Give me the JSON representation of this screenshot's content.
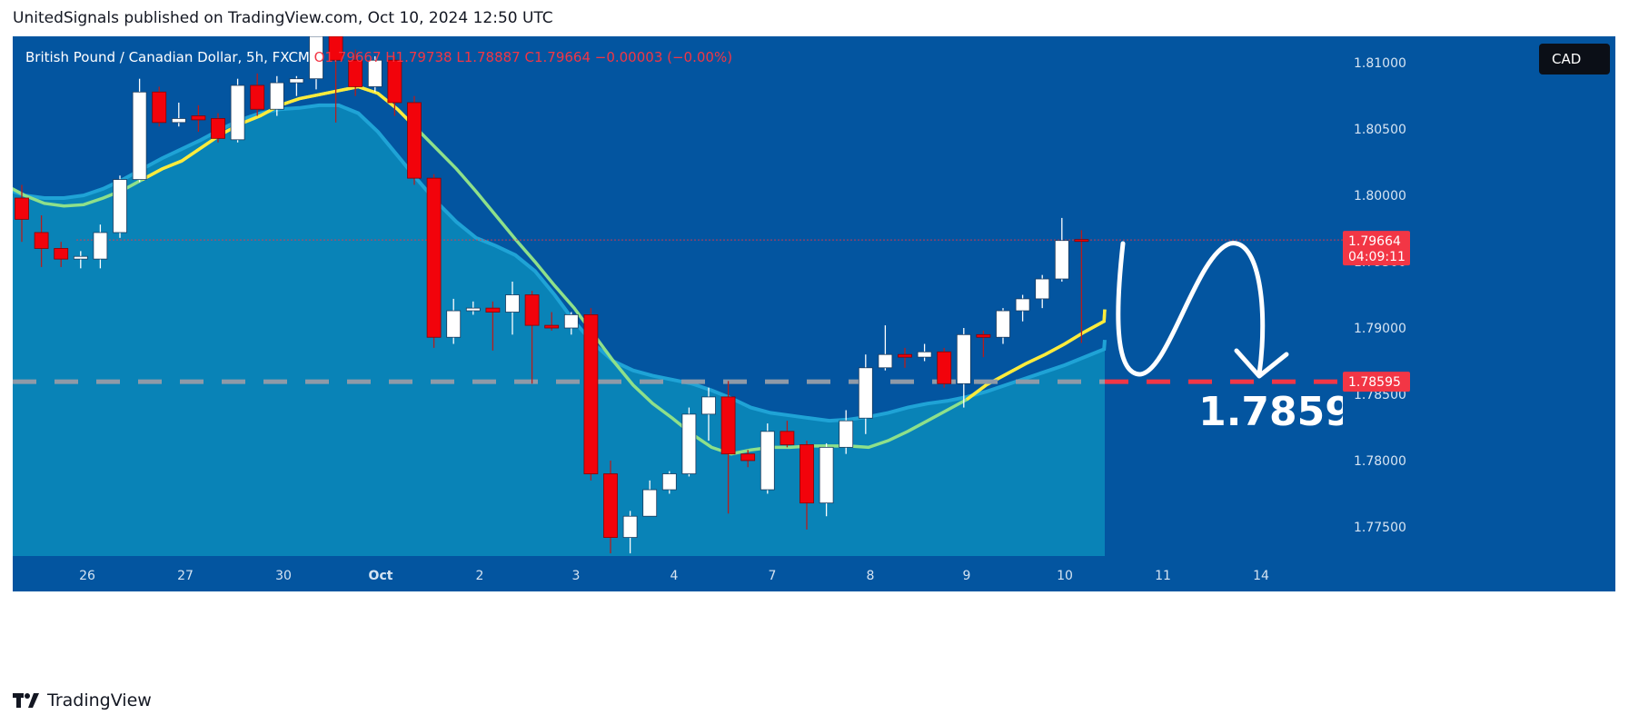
{
  "header": {
    "text": "UnitedSignals published on TradingView.com, Oct 10, 2024 12:50 UTC"
  },
  "legend": {
    "symbol": "British Pound / Canadian Dollar, 5h, FXCM",
    "ohlc": "O1.79667  H1.79738  L1.78887  C1.79664  −0.00003 (−0.00%)"
  },
  "currency_button": "CAD",
  "footer": {
    "brand": "TradingView"
  },
  "colors": {
    "background": "#0355a0",
    "band": "#0a86b8",
    "ema_fast": "#ffeb3b",
    "ema_slow": "#8ee08a",
    "bear": "#f2030b",
    "bull": "#ffffff",
    "label_red": "#f23645"
  },
  "chart_data": {
    "type": "candlestick",
    "y_ticks": [
      "1.81000",
      "1.80500",
      "1.80000",
      "1.79500",
      "1.79000",
      "1.78500",
      "1.78000",
      "1.77500"
    ],
    "y_tick_values": [
      1.81,
      1.805,
      1.8,
      1.795,
      1.79,
      1.785,
      1.78,
      1.775
    ],
    "ylim": [
      1.7728,
      1.812
    ],
    "x_labels": [
      "26",
      "27",
      "30",
      "Oct",
      "2",
      "3",
      "4",
      "7",
      "8",
      "9",
      "10",
      "11",
      "14"
    ],
    "candles": [
      {
        "o": 1.7998,
        "h": 1.8008,
        "l": 1.7965,
        "c": 1.7982
      },
      {
        "o": 1.7972,
        "h": 1.7985,
        "l": 1.7946,
        "c": 1.796
      },
      {
        "o": 1.796,
        "h": 1.7965,
        "l": 1.7946,
        "c": 1.7952
      },
      {
        "o": 1.7952,
        "h": 1.7958,
        "l": 1.7945,
        "c": 1.7954
      },
      {
        "o": 1.7952,
        "h": 1.7978,
        "l": 1.7945,
        "c": 1.7972
      },
      {
        "o": 1.7972,
        "h": 1.8015,
        "l": 1.7968,
        "c": 1.8012
      },
      {
        "o": 1.8012,
        "h": 1.8088,
        "l": 1.801,
        "c": 1.8078
      },
      {
        "o": 1.8078,
        "h": 1.8082,
        "l": 1.8052,
        "c": 1.8055
      },
      {
        "o": 1.8055,
        "h": 1.807,
        "l": 1.8052,
        "c": 1.8058
      },
      {
        "o": 1.806,
        "h": 1.8068,
        "l": 1.8048,
        "c": 1.8057
      },
      {
        "o": 1.8058,
        "h": 1.8062,
        "l": 1.804,
        "c": 1.8043
      },
      {
        "o": 1.8042,
        "h": 1.8088,
        "l": 1.804,
        "c": 1.8083
      },
      {
        "o": 1.8083,
        "h": 1.8092,
        "l": 1.806,
        "c": 1.8065
      },
      {
        "o": 1.8065,
        "h": 1.809,
        "l": 1.806,
        "c": 1.8085
      },
      {
        "o": 1.8085,
        "h": 1.809,
        "l": 1.8075,
        "c": 1.8088
      },
      {
        "o": 1.8088,
        "h": 1.8122,
        "l": 1.808,
        "c": 1.812
      },
      {
        "o": 1.812,
        "h": 1.813,
        "l": 1.8055,
        "c": 1.8102
      },
      {
        "o": 1.8102,
        "h": 1.811,
        "l": 1.8075,
        "c": 1.8082
      },
      {
        "o": 1.8082,
        "h": 1.8105,
        "l": 1.8078,
        "c": 1.8102
      },
      {
        "o": 1.8102,
        "h": 1.8105,
        "l": 1.806,
        "c": 1.807
      },
      {
        "o": 1.807,
        "h": 1.8075,
        "l": 1.8008,
        "c": 1.8013
      },
      {
        "o": 1.8013,
        "h": 1.8016,
        "l": 1.7885,
        "c": 1.7893
      },
      {
        "o": 1.7893,
        "h": 1.7922,
        "l": 1.7888,
        "c": 1.7913
      },
      {
        "o": 1.7913,
        "h": 1.792,
        "l": 1.791,
        "c": 1.7915
      },
      {
        "o": 1.7915,
        "h": 1.792,
        "l": 1.7883,
        "c": 1.7912
      },
      {
        "o": 1.7912,
        "h": 1.7935,
        "l": 1.7895,
        "c": 1.7925
      },
      {
        "o": 1.7925,
        "h": 1.7928,
        "l": 1.7858,
        "c": 1.7902
      },
      {
        "o": 1.7902,
        "h": 1.7912,
        "l": 1.7898,
        "c": 1.79
      },
      {
        "o": 1.79,
        "h": 1.7912,
        "l": 1.7895,
        "c": 1.791
      },
      {
        "o": 1.791,
        "h": 1.7915,
        "l": 1.7785,
        "c": 1.779
      },
      {
        "o": 1.779,
        "h": 1.78,
        "l": 1.773,
        "c": 1.7742
      },
      {
        "o": 1.7742,
        "h": 1.7762,
        "l": 1.773,
        "c": 1.7758
      },
      {
        "o": 1.7758,
        "h": 1.7785,
        "l": 1.7758,
        "c": 1.7778
      },
      {
        "o": 1.7778,
        "h": 1.7792,
        "l": 1.7775,
        "c": 1.779
      },
      {
        "o": 1.779,
        "h": 1.784,
        "l": 1.7788,
        "c": 1.7835
      },
      {
        "o": 1.7835,
        "h": 1.7855,
        "l": 1.7815,
        "c": 1.7848
      },
      {
        "o": 1.7848,
        "h": 1.786,
        "l": 1.776,
        "c": 1.7805
      },
      {
        "o": 1.7805,
        "h": 1.7808,
        "l": 1.7795,
        "c": 1.78
      },
      {
        "o": 1.7778,
        "h": 1.7828,
        "l": 1.7775,
        "c": 1.7822
      },
      {
        "o": 1.7822,
        "h": 1.783,
        "l": 1.781,
        "c": 1.7812
      },
      {
        "o": 1.7812,
        "h": 1.7815,
        "l": 1.7748,
        "c": 1.7768
      },
      {
        "o": 1.7768,
        "h": 1.7813,
        "l": 1.7758,
        "c": 1.781
      },
      {
        "o": 1.781,
        "h": 1.7838,
        "l": 1.7805,
        "c": 1.783
      },
      {
        "o": 1.7832,
        "h": 1.788,
        "l": 1.782,
        "c": 1.787
      },
      {
        "o": 1.787,
        "h": 1.7902,
        "l": 1.7868,
        "c": 1.788
      },
      {
        "o": 1.788,
        "h": 1.7885,
        "l": 1.787,
        "c": 1.7878
      },
      {
        "o": 1.7878,
        "h": 1.7888,
        "l": 1.7875,
        "c": 1.7882
      },
      {
        "o": 1.7882,
        "h": 1.7885,
        "l": 1.7855,
        "c": 1.7858
      },
      {
        "o": 1.7858,
        "h": 1.79,
        "l": 1.784,
        "c": 1.7895
      },
      {
        "o": 1.7895,
        "h": 1.7898,
        "l": 1.7878,
        "c": 1.7893
      },
      {
        "o": 1.7893,
        "h": 1.7915,
        "l": 1.7888,
        "c": 1.7913
      },
      {
        "o": 1.7913,
        "h": 1.7925,
        "l": 1.7905,
        "c": 1.7922
      },
      {
        "o": 1.7922,
        "h": 1.794,
        "l": 1.7915,
        "c": 1.7937
      },
      {
        "o": 1.7937,
        "h": 1.7983,
        "l": 1.7935,
        "c": 1.7966
      },
      {
        "o": 1.79667,
        "h": 1.79738,
        "l": 1.78887,
        "c": 1.79664
      }
    ],
    "ema_fast": [
      1.8015,
      1.8008,
      1.8,
      1.7994,
      1.7992,
      1.7993,
      1.7998,
      1.8004,
      1.8012,
      1.802,
      1.8026,
      1.8036,
      1.8046,
      1.8054,
      1.806,
      1.8068,
      1.8073,
      1.8076,
      1.8079,
      1.8082,
      1.8077,
      1.8065,
      1.805,
      1.8035,
      1.802,
      1.8003,
      1.7985,
      1.7967,
      1.795,
      1.7932,
      1.7915,
      1.7895,
      1.7875,
      1.7857,
      1.7843,
      1.7832,
      1.782,
      1.781,
      1.7805,
      1.7808,
      1.781,
      1.781,
      1.7811,
      1.7811,
      1.7811,
      1.781,
      1.7815,
      1.7822,
      1.783,
      1.7838,
      1.7846,
      1.7857,
      1.7865,
      1.7873,
      1.788,
      1.7888,
      1.7897,
      1.7905,
      1.7914
    ],
    "band_top": [
      1.801,
      1.8005,
      1.8,
      1.7998,
      1.7998,
      1.8,
      1.8005,
      1.8012,
      1.802,
      1.8028,
      1.8035,
      1.8042,
      1.805,
      1.8057,
      1.8062,
      1.8065,
      1.8066,
      1.8068,
      1.8068,
      1.8062,
      1.8048,
      1.803,
      1.8012,
      1.7995,
      1.798,
      1.7968,
      1.7962,
      1.7955,
      1.7943,
      1.7925,
      1.7905,
      1.7888,
      1.7875,
      1.7868,
      1.7864,
      1.7861,
      1.7858,
      1.7853,
      1.7847,
      1.784,
      1.7836,
      1.7834,
      1.7832,
      1.783,
      1.7831,
      1.7833,
      1.7836,
      1.784,
      1.7843,
      1.7845,
      1.7848,
      1.7852,
      1.7857,
      1.7862,
      1.7867,
      1.7872,
      1.7878,
      1.7884,
      1.7891
    ],
    "price_label": {
      "value": "1.79664",
      "countdown": "04:09:11",
      "level": 1.79664
    },
    "level_line": {
      "value": 1.78595,
      "label": "1.78595"
    },
    "annotation": "1.7859"
  }
}
